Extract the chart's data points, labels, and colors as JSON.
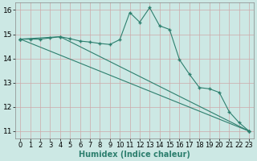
{
  "title": "",
  "xlabel": "Humidex (Indice chaleur)",
  "ylabel": "",
  "bg_color": "#cce8e4",
  "line_color": "#2d7f6e",
  "xlim": [
    -0.5,
    23.5
  ],
  "ylim": [
    10.7,
    16.3
  ],
  "x_ticks": [
    0,
    1,
    2,
    3,
    4,
    5,
    6,
    7,
    8,
    9,
    10,
    11,
    12,
    13,
    14,
    15,
    16,
    17,
    18,
    19,
    20,
    21,
    22,
    23
  ],
  "y_ticks": [
    11,
    12,
    13,
    14,
    15,
    16
  ],
  "series1_x": [
    0,
    1,
    2,
    3,
    4,
    5,
    6,
    7,
    8,
    9,
    10,
    11,
    12,
    13,
    14,
    15,
    16,
    17,
    18,
    19,
    20,
    21,
    22,
    23
  ],
  "series1_y": [
    14.8,
    14.8,
    14.8,
    14.85,
    14.9,
    14.82,
    14.72,
    14.68,
    14.62,
    14.58,
    14.78,
    15.9,
    15.5,
    16.1,
    15.35,
    15.2,
    13.95,
    13.35,
    12.8,
    12.75,
    12.6,
    11.8,
    11.35,
    11.0
  ],
  "series2_x": [
    0,
    23
  ],
  "series2_y": [
    14.8,
    11.0
  ],
  "series3_x": [
    0,
    4,
    23
  ],
  "series3_y": [
    14.8,
    14.9,
    11.0
  ],
  "tick_fontsize": 6.0,
  "xlabel_fontsize": 7.0
}
